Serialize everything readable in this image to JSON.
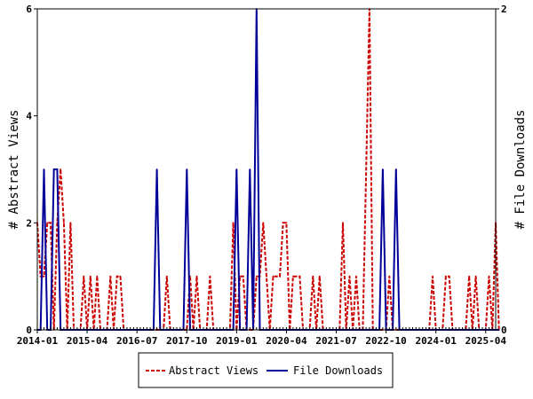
{
  "chart_data": {
    "type": "line",
    "xlabel": "",
    "ylabel_left": "# Abstract Views",
    "ylabel_right": "# File Downloads",
    "x_start": "2014-01",
    "x_end": "2025-07",
    "x_ticks": [
      "2014-01",
      "2015-04",
      "2016-07",
      "2017-10",
      "2019-01",
      "2020-04",
      "2021-07",
      "2022-10",
      "2024-01",
      "2025-04"
    ],
    "y_left": {
      "range": [
        0,
        6
      ],
      "ticks": [
        0,
        2,
        4,
        6
      ]
    },
    "y_right": {
      "range": [
        0,
        2
      ],
      "ticks": [
        0,
        2
      ]
    },
    "grid": false,
    "legend": {
      "position": "bottom-center",
      "entries": [
        "Abstract Views",
        "File Downloads"
      ]
    },
    "series": [
      {
        "name": "Abstract Views",
        "axis": "left",
        "color": "#cc0000",
        "style": "dashed",
        "points": [
          [
            "2014-01",
            2
          ],
          [
            "2014-02",
            1
          ],
          [
            "2014-03",
            1
          ],
          [
            "2014-04",
            2
          ],
          [
            "2014-05",
            2
          ],
          [
            "2014-06",
            0
          ],
          [
            "2014-07",
            2
          ],
          [
            "2014-08",
            3
          ],
          [
            "2014-09",
            2
          ],
          [
            "2014-10",
            0
          ],
          [
            "2014-11",
            2
          ],
          [
            "2014-12",
            0
          ],
          [
            "2015-01",
            0
          ],
          [
            "2015-02",
            0
          ],
          [
            "2015-03",
            1
          ],
          [
            "2015-04",
            0
          ],
          [
            "2015-05",
            1
          ],
          [
            "2015-06",
            0
          ],
          [
            "2015-07",
            1
          ],
          [
            "2015-08",
            0
          ],
          [
            "2015-09",
            0
          ],
          [
            "2015-10",
            0
          ],
          [
            "2015-11",
            1
          ],
          [
            "2015-12",
            0
          ],
          [
            "2016-01",
            1
          ],
          [
            "2016-02",
            1
          ],
          [
            "2016-03",
            0
          ],
          [
            "2016-04",
            0
          ],
          [
            "2016-05",
            0
          ],
          [
            "2016-06",
            0
          ],
          [
            "2016-07",
            0
          ],
          [
            "2016-08",
            0
          ],
          [
            "2016-09",
            0
          ],
          [
            "2016-10",
            0
          ],
          [
            "2016-11",
            0
          ],
          [
            "2016-12",
            0
          ],
          [
            "2017-01",
            0
          ],
          [
            "2017-02",
            0
          ],
          [
            "2017-03",
            0
          ],
          [
            "2017-04",
            1
          ],
          [
            "2017-05",
            0
          ],
          [
            "2017-06",
            0
          ],
          [
            "2017-07",
            0
          ],
          [
            "2017-08",
            0
          ],
          [
            "2017-09",
            0
          ],
          [
            "2017-10",
            0
          ],
          [
            "2017-11",
            1
          ],
          [
            "2017-12",
            0
          ],
          [
            "2018-01",
            1
          ],
          [
            "2018-02",
            0
          ],
          [
            "2018-03",
            0
          ],
          [
            "2018-04",
            0
          ],
          [
            "2018-05",
            1
          ],
          [
            "2018-06",
            0
          ],
          [
            "2018-07",
            0
          ],
          [
            "2018-08",
            0
          ],
          [
            "2018-09",
            0
          ],
          [
            "2018-10",
            0
          ],
          [
            "2018-11",
            0
          ],
          [
            "2018-12",
            2
          ],
          [
            "2019-01",
            0
          ],
          [
            "2019-02",
            1
          ],
          [
            "2019-03",
            1
          ],
          [
            "2019-04",
            0
          ],
          [
            "2019-05",
            0
          ],
          [
            "2019-06",
            0
          ],
          [
            "2019-07",
            1
          ],
          [
            "2019-08",
            1
          ],
          [
            "2019-09",
            2
          ],
          [
            "2019-10",
            1
          ],
          [
            "2019-11",
            0
          ],
          [
            "2019-12",
            1
          ],
          [
            "2020-01",
            1
          ],
          [
            "2020-02",
            1
          ],
          [
            "2020-03",
            2
          ],
          [
            "2020-04",
            2
          ],
          [
            "2020-05",
            0
          ],
          [
            "2020-06",
            1
          ],
          [
            "2020-07",
            1
          ],
          [
            "2020-08",
            1
          ],
          [
            "2020-09",
            0
          ],
          [
            "2020-10",
            0
          ],
          [
            "2020-11",
            0
          ],
          [
            "2020-12",
            1
          ],
          [
            "2021-01",
            0
          ],
          [
            "2021-02",
            1
          ],
          [
            "2021-03",
            0
          ],
          [
            "2021-04",
            0
          ],
          [
            "2021-05",
            0
          ],
          [
            "2021-06",
            0
          ],
          [
            "2021-07",
            0
          ],
          [
            "2021-08",
            0
          ],
          [
            "2021-09",
            2
          ],
          [
            "2021-10",
            0
          ],
          [
            "2021-11",
            1
          ],
          [
            "2021-12",
            0
          ],
          [
            "2022-01",
            1
          ],
          [
            "2022-02",
            0
          ],
          [
            "2022-03",
            0
          ],
          [
            "2022-04",
            3
          ],
          [
            "2022-05",
            6
          ],
          [
            "2022-06",
            0
          ],
          [
            "2022-07",
            0
          ],
          [
            "2022-08",
            0
          ],
          [
            "2022-09",
            0
          ],
          [
            "2022-10",
            0
          ],
          [
            "2022-11",
            1
          ],
          [
            "2022-12",
            0
          ],
          [
            "2023-01",
            0
          ],
          [
            "2023-02",
            0
          ],
          [
            "2023-03",
            0
          ],
          [
            "2023-04",
            0
          ],
          [
            "2023-05",
            0
          ],
          [
            "2023-06",
            0
          ],
          [
            "2023-07",
            0
          ],
          [
            "2023-08",
            0
          ],
          [
            "2023-09",
            0
          ],
          [
            "2023-10",
            0
          ],
          [
            "2023-11",
            0
          ],
          [
            "2023-12",
            1
          ],
          [
            "2024-01",
            0
          ],
          [
            "2024-02",
            0
          ],
          [
            "2024-03",
            0
          ],
          [
            "2024-04",
            1
          ],
          [
            "2024-05",
            1
          ],
          [
            "2024-06",
            0
          ],
          [
            "2024-07",
            0
          ],
          [
            "2024-08",
            0
          ],
          [
            "2024-09",
            0
          ],
          [
            "2024-10",
            0
          ],
          [
            "2024-11",
            1
          ],
          [
            "2024-12",
            0
          ],
          [
            "2025-01",
            1
          ],
          [
            "2025-02",
            0
          ],
          [
            "2025-03",
            0
          ],
          [
            "2025-04",
            0
          ],
          [
            "2025-05",
            1
          ],
          [
            "2025-06",
            0
          ],
          [
            "2025-07",
            2
          ],
          [
            "2025-08",
            0
          ]
        ]
      },
      {
        "name": "File Downloads",
        "axis": "right",
        "color": "#000099",
        "style": "solid",
        "points": [
          [
            "2014-01",
            0
          ],
          [
            "2014-02",
            0
          ],
          [
            "2014-03",
            1
          ],
          [
            "2014-04",
            0
          ],
          [
            "2014-05",
            0
          ],
          [
            "2014-06",
            1
          ],
          [
            "2014-07",
            1
          ],
          [
            "2014-08",
            0
          ],
          [
            "2014-09",
            0
          ],
          [
            "2014-10",
            0
          ],
          [
            "2014-11",
            0
          ],
          [
            "2014-12",
            0
          ],
          [
            "2015-01",
            0
          ],
          [
            "2015-02",
            0
          ],
          [
            "2015-03",
            0
          ],
          [
            "2015-04",
            0
          ],
          [
            "2015-05",
            0
          ],
          [
            "2015-06",
            0
          ],
          [
            "2015-07",
            0
          ],
          [
            "2015-08",
            0
          ],
          [
            "2015-09",
            0
          ],
          [
            "2015-10",
            0
          ],
          [
            "2015-11",
            0
          ],
          [
            "2015-12",
            0
          ],
          [
            "2016-01",
            0
          ],
          [
            "2016-02",
            0
          ],
          [
            "2016-03",
            0
          ],
          [
            "2016-04",
            0
          ],
          [
            "2016-05",
            0
          ],
          [
            "2016-06",
            0
          ],
          [
            "2016-07",
            0
          ],
          [
            "2016-08",
            0
          ],
          [
            "2016-09",
            0
          ],
          [
            "2016-10",
            0
          ],
          [
            "2016-11",
            0
          ],
          [
            "2016-12",
            0
          ],
          [
            "2017-01",
            1
          ],
          [
            "2017-02",
            0
          ],
          [
            "2017-03",
            0
          ],
          [
            "2017-04",
            0
          ],
          [
            "2017-05",
            0
          ],
          [
            "2017-06",
            0
          ],
          [
            "2017-07",
            0
          ],
          [
            "2017-08",
            0
          ],
          [
            "2017-09",
            0
          ],
          [
            "2017-10",
            1
          ],
          [
            "2017-11",
            0
          ],
          [
            "2017-12",
            0
          ],
          [
            "2018-01",
            0
          ],
          [
            "2018-02",
            0
          ],
          [
            "2018-03",
            0
          ],
          [
            "2018-04",
            0
          ],
          [
            "2018-05",
            0
          ],
          [
            "2018-06",
            0
          ],
          [
            "2018-07",
            0
          ],
          [
            "2018-08",
            0
          ],
          [
            "2018-09",
            0
          ],
          [
            "2018-10",
            0
          ],
          [
            "2018-11",
            0
          ],
          [
            "2018-12",
            0
          ],
          [
            "2019-01",
            1
          ],
          [
            "2019-02",
            0
          ],
          [
            "2019-03",
            0
          ],
          [
            "2019-04",
            0
          ],
          [
            "2019-05",
            1
          ],
          [
            "2019-06",
            0
          ],
          [
            "2019-07",
            2
          ],
          [
            "2019-08",
            0
          ],
          [
            "2019-09",
            0
          ],
          [
            "2019-10",
            0
          ],
          [
            "2019-11",
            0
          ],
          [
            "2019-12",
            0
          ],
          [
            "2020-01",
            0
          ],
          [
            "2020-02",
            0
          ],
          [
            "2020-03",
            0
          ],
          [
            "2020-04",
            0
          ],
          [
            "2020-05",
            0
          ],
          [
            "2020-06",
            0
          ],
          [
            "2020-07",
            0
          ],
          [
            "2020-08",
            0
          ],
          [
            "2020-09",
            0
          ],
          [
            "2020-10",
            0
          ],
          [
            "2020-11",
            0
          ],
          [
            "2020-12",
            0
          ],
          [
            "2021-01",
            0
          ],
          [
            "2021-02",
            0
          ],
          [
            "2021-03",
            0
          ],
          [
            "2021-04",
            0
          ],
          [
            "2021-05",
            0
          ],
          [
            "2021-06",
            0
          ],
          [
            "2021-07",
            0
          ],
          [
            "2021-08",
            0
          ],
          [
            "2021-09",
            0
          ],
          [
            "2021-10",
            0
          ],
          [
            "2021-11",
            0
          ],
          [
            "2021-12",
            0
          ],
          [
            "2022-01",
            0
          ],
          [
            "2022-02",
            0
          ],
          [
            "2022-03",
            0
          ],
          [
            "2022-04",
            0
          ],
          [
            "2022-05",
            0
          ],
          [
            "2022-06",
            0
          ],
          [
            "2022-07",
            0
          ],
          [
            "2022-08",
            0
          ],
          [
            "2022-09",
            1
          ],
          [
            "2022-10",
            0
          ],
          [
            "2022-11",
            0
          ],
          [
            "2022-12",
            0
          ],
          [
            "2023-01",
            1
          ],
          [
            "2023-02",
            0
          ],
          [
            "2023-03",
            0
          ],
          [
            "2023-04",
            0
          ],
          [
            "2023-05",
            0
          ],
          [
            "2023-06",
            0
          ],
          [
            "2023-07",
            0
          ],
          [
            "2023-08",
            0
          ],
          [
            "2023-09",
            0
          ],
          [
            "2023-10",
            0
          ],
          [
            "2023-11",
            0
          ],
          [
            "2023-12",
            0
          ],
          [
            "2024-01",
            0
          ],
          [
            "2024-02",
            0
          ],
          [
            "2024-03",
            0
          ],
          [
            "2024-04",
            0
          ],
          [
            "2024-05",
            0
          ],
          [
            "2024-06",
            0
          ],
          [
            "2024-07",
            0
          ],
          [
            "2024-08",
            0
          ],
          [
            "2024-09",
            0
          ],
          [
            "2024-10",
            0
          ],
          [
            "2024-11",
            0
          ],
          [
            "2024-12",
            0
          ],
          [
            "2025-01",
            0
          ],
          [
            "2025-02",
            0
          ],
          [
            "2025-03",
            0
          ],
          [
            "2025-04",
            0
          ],
          [
            "2025-05",
            0
          ],
          [
            "2025-06",
            0
          ],
          [
            "2025-07",
            0
          ],
          [
            "2025-08",
            0
          ]
        ]
      }
    ]
  }
}
